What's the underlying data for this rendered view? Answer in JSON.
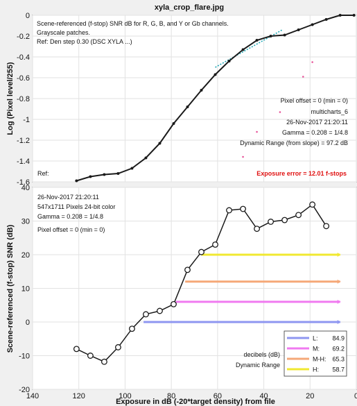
{
  "figure_title": "xyla_crop_flare.jpg",
  "colors": {
    "curve": "#1a1a1a",
    "fit": "#1fa7b5",
    "noise_dots": "#e8559a",
    "exposure_error": "#e01010",
    "L": "#8e96f0",
    "M": "#f07af0",
    "MH": "#f5a878",
    "H": "#f0e830"
  },
  "top_panel": {
    "header_lines": [
      "Scene-referenced (f-stop) SNR dB for R, G, B, and Y or Gb channels.",
      "Grayscale patches.",
      "Ref: Den step 0.30 (DSC XYLA ...)"
    ],
    "ref_label": "Ref:",
    "info_lines": [
      "Pixel offset = 0  (min = 0)",
      "multicharts_6",
      "26-Nov-2017 21:20:11",
      "Gamma = 0.208 = 1/4.8",
      "Dynamic Range (from slope) = 97.2 dB"
    ],
    "exposure_error": "Exposure error = 12.01 f-stops"
  },
  "bottom_panel": {
    "info_lines": [
      "26-Nov-2017 21:20:11",
      "547x1711 Pixels   24-bit color",
      "Gamma = 0.208 = 1/4.8",
      "Pixel offset = 0  (min = 0)"
    ],
    "legend_note_1": "decibels (dB)",
    "legend_note_2": "Dynamic Range",
    "legend": [
      {
        "key": "L",
        "label": "L:",
        "value": "84.9"
      },
      {
        "key": "M",
        "label": "M:",
        "value": "69.2"
      },
      {
        "key": "MH",
        "label": "M-H:",
        "value": "65.3"
      },
      {
        "key": "H",
        "label": "H:",
        "value": "58.7"
      }
    ]
  },
  "chart_data": [
    {
      "type": "line",
      "title": "xyla_crop_flare.jpg",
      "xlabel": "",
      "ylabel": "Log (Pixel level/255)",
      "xlim": [
        140,
        0
      ],
      "ylim": [
        -1.6,
        0
      ],
      "x_reversed": true,
      "xticks": [
        140,
        120,
        100,
        80,
        60,
        40,
        20,
        0
      ],
      "yticks": [
        0,
        -0.2,
        -0.4,
        -0.6,
        -0.8,
        -1,
        -1.2,
        -1.4,
        -1.6
      ],
      "ytick_labels": [
        "0",
        "-0.2",
        "-0.4",
        "-0.6",
        "-0.8",
        "-1",
        "-1.2",
        "-1.4",
        "-1.6"
      ],
      "grid": true,
      "series": [
        {
          "x": [
            121,
            115,
            109,
            103,
            97,
            91,
            85,
            79,
            73,
            67,
            61,
            55,
            49,
            43,
            37,
            31,
            25,
            19,
            13,
            7,
            1
          ],
          "y": [
            -1.59,
            -1.55,
            -1.53,
            -1.52,
            -1.47,
            -1.37,
            -1.23,
            -1.04,
            -0.88,
            -0.72,
            -0.57,
            -0.44,
            -0.33,
            -0.24,
            -0.2,
            -0.19,
            -0.14,
            -0.09,
            -0.04,
            0,
            0
          ]
        }
      ],
      "fit_line": {
        "x": [
          61,
          32
        ],
        "y": [
          -0.5,
          -0.14
        ]
      },
      "noise_points": {
        "x": [
          19,
          23,
          33,
          43,
          49
        ],
        "y": [
          -0.45,
          -0.59,
          -0.93,
          -1.12,
          -1.36
        ]
      }
    },
    {
      "type": "line",
      "title": "",
      "xlabel": "Exposure in dB (-20*target density)   from file",
      "ylabel": "Scene-referenced (f-stop) SNR (dB)",
      "xlim": [
        140,
        0
      ],
      "ylim": [
        -20,
        40
      ],
      "x_reversed": true,
      "xticks": [
        140,
        120,
        100,
        80,
        60,
        40,
        20,
        0
      ],
      "yticks": [
        40,
        30,
        20,
        10,
        0,
        -10,
        -20
      ],
      "grid": true,
      "series": [
        {
          "x": [
            121,
            115,
            109,
            103,
            97,
            91,
            85,
            79,
            73,
            67,
            61,
            55,
            49,
            43,
            37,
            31,
            25,
            19,
            13
          ],
          "y": [
            -8,
            -10,
            -11.8,
            -7.5,
            -2,
            2.3,
            3.3,
            5.3,
            15.5,
            20.8,
            23,
            33.2,
            33.6,
            27.7,
            29.8,
            30.3,
            31.8,
            34.9,
            28.5
          ]
        }
      ],
      "ranges": [
        {
          "key": "L",
          "level": 0,
          "x_start": 92,
          "x_end": 7
        },
        {
          "key": "M",
          "level": 6,
          "x_start": 78,
          "x_end": 7
        },
        {
          "key": "MH",
          "level": 12,
          "x_start": 74,
          "x_end": 7
        },
        {
          "key": "H",
          "level": 20,
          "x_start": 67,
          "x_end": 7
        }
      ]
    }
  ]
}
